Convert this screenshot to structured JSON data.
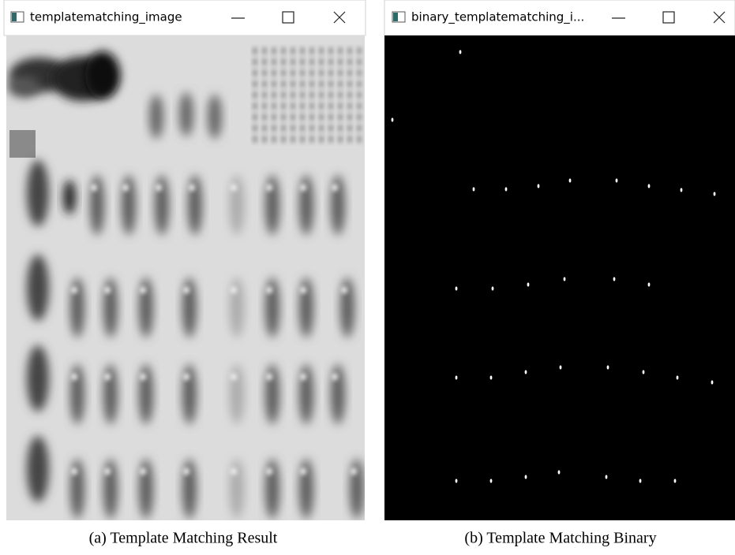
{
  "windows": [
    {
      "title": "templatematching_image",
      "caption": "(a) Template Matching Result"
    },
    {
      "title": "binary_templatematching_i...",
      "caption": "(b) Template Matching Binary"
    }
  ]
}
